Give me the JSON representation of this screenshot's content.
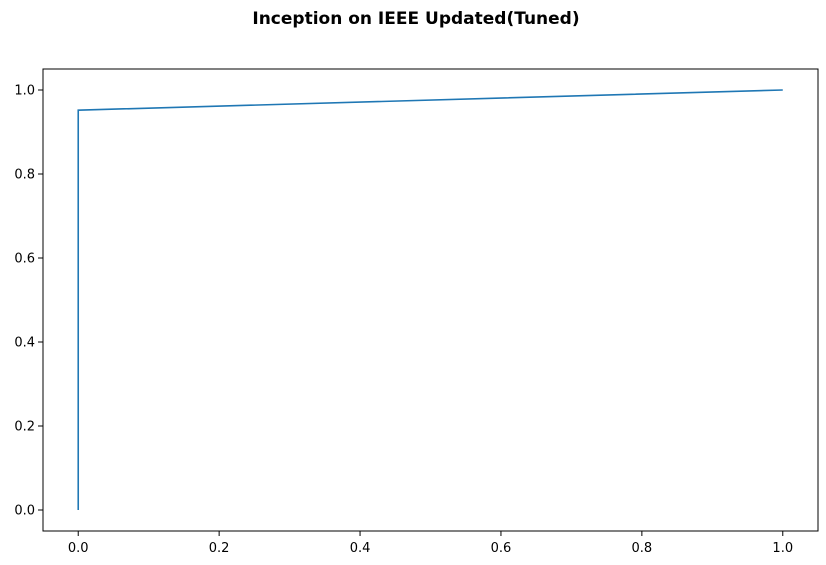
{
  "chart_data": {
    "type": "line",
    "title": "Inception on IEEE Updated(Tuned)",
    "xlabel": "",
    "ylabel": "",
    "xlim": [
      -0.05,
      1.05
    ],
    "ylim": [
      -0.05,
      1.05
    ],
    "x_ticks": [
      "0.0",
      "0.2",
      "0.4",
      "0.6",
      "0.8",
      "1.0"
    ],
    "y_ticks": [
      "0.0",
      "0.2",
      "0.4",
      "0.6",
      "0.8",
      "1.0"
    ],
    "x_tick_values": [
      0.0,
      0.2,
      0.4,
      0.6,
      0.8,
      1.0
    ],
    "y_tick_values": [
      0.0,
      0.2,
      0.4,
      0.6,
      0.8,
      1.0
    ],
    "grid": false,
    "legend": "none",
    "series": [
      {
        "color": "#1f77b4",
        "x": [
          0.0,
          0.0,
          1.0
        ],
        "y": [
          0.0,
          0.952,
          1.0
        ]
      }
    ]
  }
}
